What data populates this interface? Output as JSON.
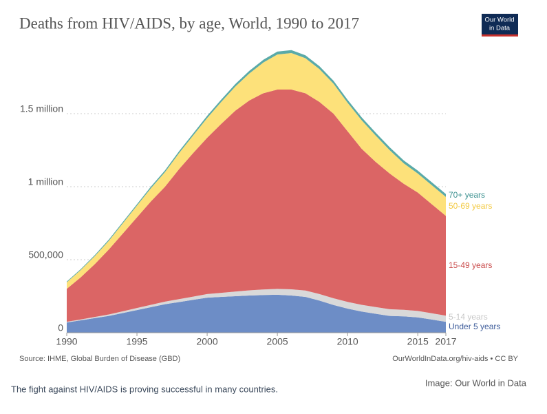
{
  "chart_data": {
    "type": "stacked_area",
    "title": "Deaths from HIV/AIDS, by age, World, 1990 to 2017",
    "x": [
      1990,
      1991,
      1992,
      1993,
      1994,
      1995,
      1996,
      1997,
      1998,
      1999,
      2000,
      2001,
      2002,
      2003,
      2004,
      2005,
      2006,
      2007,
      2008,
      2009,
      2010,
      2011,
      2012,
      2013,
      2014,
      2015,
      2016,
      2017
    ],
    "xlim": [
      1990,
      2017
    ],
    "xticks": [
      1990,
      1995,
      2000,
      2005,
      2010,
      2015,
      2017
    ],
    "ylim": [
      0,
      2000000
    ],
    "yticks": [
      0,
      {
        "value": 500000,
        "label": "500,000"
      },
      {
        "value": 1000000,
        "label": "1 million"
      },
      {
        "value": 1500000,
        "label": "1.5 million"
      }
    ],
    "grid": true,
    "series": [
      {
        "name": "Under 5 years",
        "color": "#6d8dc6",
        "label_color": "#3d5c9a",
        "values": [
          70000,
          85000,
          100000,
          115000,
          135000,
          155000,
          175000,
          195000,
          210000,
          225000,
          240000,
          245000,
          250000,
          255000,
          258000,
          260000,
          255000,
          245000,
          220000,
          190000,
          165000,
          145000,
          130000,
          115000,
          112000,
          105000,
          90000,
          75000
        ]
      },
      {
        "name": "5-14 years",
        "color": "#d9d9d9",
        "label_color": "#c8c8c8",
        "values": [
          5000,
          6000,
          8000,
          10000,
          12000,
          14000,
          16000,
          18000,
          20000,
          22000,
          25000,
          28000,
          32000,
          35000,
          38000,
          40000,
          42000,
          44000,
          45000,
          46000,
          46000,
          46000,
          46000,
          46000,
          45000,
          44000,
          43000,
          42000
        ]
      },
      {
        "name": "15-49 years",
        "color": "#db6565",
        "label_color": "#c94a4a",
        "values": [
          225000,
          289000,
          362000,
          445000,
          533000,
          621000,
          709000,
          787000,
          890000,
          983000,
          1070000,
          1157000,
          1238000,
          1300000,
          1344000,
          1365000,
          1368000,
          1351000,
          1315000,
          1264000,
          1169000,
          1069000,
          994000,
          929000,
          863000,
          811000,
          747000,
          683000
        ]
      },
      {
        "name": "50-69 years",
        "color": "#fde17a",
        "label_color": "#f3c93f",
        "values": [
          45000,
          50000,
          55000,
          60000,
          70000,
          80000,
          90000,
          100000,
          110000,
          120000,
          135000,
          150000,
          165000,
          185000,
          210000,
          240000,
          250000,
          240000,
          225000,
          205000,
          195000,
          195000,
          180000,
          160000,
          140000,
          130000,
          130000,
          130000
        ]
      },
      {
        "name": "70+ years",
        "color": "#5aaaa8",
        "label_color": "#3e9291",
        "values": [
          5000,
          6000,
          7000,
          8000,
          9000,
          10000,
          11000,
          12000,
          13000,
          14000,
          15000,
          16000,
          17000,
          18000,
          19000,
          20000,
          20000,
          20000,
          20000,
          20000,
          20000,
          20000,
          20000,
          20000,
          20000,
          20000,
          20000,
          20000
        ]
      }
    ]
  },
  "footer": {
    "source": "Source: IHME, Global Burden of Disease (GBD)",
    "link": "OurWorldInData.org/hiv-aids • CC BY"
  },
  "logo": [
    "Our World",
    "in Data"
  ],
  "caption": "The fight against HIV/AIDS is proving successful in many countries.",
  "credit": "Image: Our World in Data"
}
